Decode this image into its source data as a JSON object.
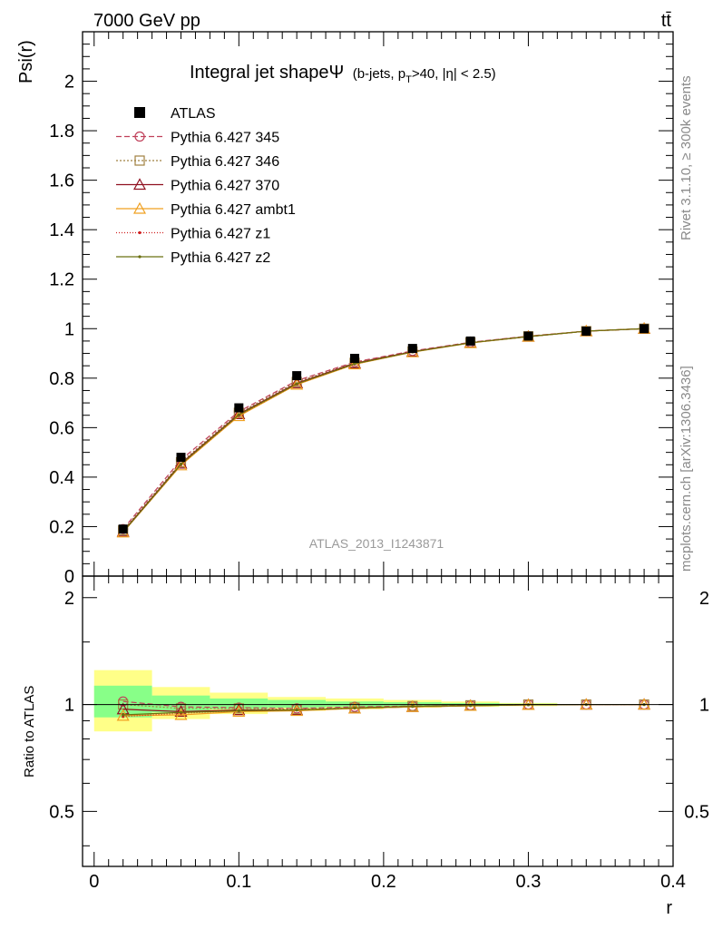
{
  "header": {
    "energy_label": "7000 GeV pp",
    "process_label": "tt̄"
  },
  "side_labels": {
    "rivet": "Rivet 3.1.10, ≥ 300k events",
    "source": "mcplots.cern.ch [arXiv:1306.3436]"
  },
  "chart_data": {
    "type": "line",
    "title": "Integral jet shapeΨ",
    "subtitle_parts": {
      "open": "(b-jets, p",
      "sub": "T",
      "rest": ">40, |η| < 2.5)"
    },
    "watermark": "ATLAS_2013_I1243871",
    "xlabel": "r",
    "ylabel": "Psi(r)",
    "ratio_ylabel": "Ratio to ATLAS",
    "xlim": [
      -0.008,
      0.4
    ],
    "ylim": [
      0,
      2.2
    ],
    "ratio_ylim": [
      0.35,
      2.3
    ],
    "x_ticks": [
      0,
      0.1,
      0.2,
      0.3,
      0.4
    ],
    "x_tick_labels": [
      "0",
      "0.1",
      "0.2",
      "0.3",
      "0.4"
    ],
    "y_ticks": [
      0,
      0.2,
      0.4,
      0.6,
      0.8,
      1,
      1.2,
      1.4,
      1.6,
      1.8,
      2
    ],
    "y_tick_labels": [
      "0",
      "0.2",
      "0.4",
      "0.6",
      "0.8",
      "1",
      "1.2",
      "1.4",
      "1.6",
      "1.8",
      "2"
    ],
    "ratio_ticks": [
      0.5,
      1,
      2
    ],
    "ratio_tick_labels": [
      "0.5",
      "1",
      "2"
    ],
    "legend_position": "top-left",
    "x": [
      0.02,
      0.06,
      0.1,
      0.14,
      0.18,
      0.22,
      0.26,
      0.3,
      0.34,
      0.38
    ],
    "bin_edges": [
      0,
      0.04,
      0.08,
      0.12,
      0.16,
      0.2,
      0.24,
      0.28,
      0.32,
      0.36,
      0.4
    ],
    "data": {
      "name": "ATLAS",
      "values": [
        0.19,
        0.48,
        0.68,
        0.81,
        0.88,
        0.92,
        0.95,
        0.97,
        0.99,
        1.0
      ]
    },
    "ratio_bands": {
      "outer": [
        [
          0.84,
          1.25
        ],
        [
          0.91,
          1.12
        ],
        [
          0.94,
          1.08
        ],
        [
          0.96,
          1.05
        ],
        [
          0.97,
          1.04
        ],
        [
          0.98,
          1.03
        ],
        [
          0.985,
          1.02
        ],
        [
          0.99,
          1.01
        ],
        [
          1.0,
          1.0
        ],
        [
          1.0,
          1.0
        ]
      ],
      "inner": [
        [
          0.92,
          1.13
        ],
        [
          0.95,
          1.06
        ],
        [
          0.97,
          1.04
        ],
        [
          0.98,
          1.03
        ],
        [
          0.985,
          1.02
        ],
        [
          0.99,
          1.015
        ],
        [
          0.99,
          1.01
        ],
        [
          0.995,
          1.005
        ],
        [
          1.0,
          1.0
        ],
        [
          1.0,
          1.0
        ]
      ]
    },
    "series": [
      {
        "name": "Pythia 6.427 345",
        "color": "#c0405a",
        "dash": "6,3",
        "marker": "circle",
        "values": [
          0.19,
          0.47,
          0.665,
          0.79,
          0.865,
          0.91,
          0.945,
          0.97,
          0.99,
          1.0
        ],
        "ratio": [
          1.02,
          0.985,
          0.98,
          0.975,
          0.985,
          0.99,
          0.995,
          1.0,
          1.0,
          1.0
        ]
      },
      {
        "name": "Pythia 6.427 346",
        "color": "#a08040",
        "dash": "2,2",
        "marker": "square",
        "values": [
          0.185,
          0.46,
          0.66,
          0.785,
          0.862,
          0.908,
          0.944,
          0.969,
          0.99,
          1.0
        ],
        "ratio": [
          1.0,
          0.975,
          0.975,
          0.97,
          0.98,
          0.99,
          0.995,
          1.0,
          1.0,
          1.0
        ]
      },
      {
        "name": "Pythia 6.427 370",
        "color": "#901020",
        "dash": "",
        "marker": "triangle",
        "values": [
          0.18,
          0.455,
          0.655,
          0.78,
          0.86,
          0.907,
          0.943,
          0.968,
          0.99,
          1.0
        ],
        "ratio": [
          0.97,
          0.955,
          0.965,
          0.965,
          0.975,
          0.985,
          0.992,
          0.998,
          1.0,
          1.0
        ]
      },
      {
        "name": "Pythia 6.427 ambt1",
        "color": "#f0a020",
        "dash": "",
        "marker": "triangle",
        "values": [
          0.177,
          0.448,
          0.647,
          0.774,
          0.856,
          0.905,
          0.942,
          0.968,
          0.99,
          1.0
        ],
        "ratio": [
          0.93,
          0.935,
          0.955,
          0.96,
          0.975,
          0.985,
          0.992,
          0.998,
          1.0,
          1.0
        ]
      },
      {
        "name": "Pythia 6.427 z1",
        "color": "#d02020",
        "dash": "1,2",
        "marker": "dot",
        "values": [
          0.177,
          0.45,
          0.65,
          0.776,
          0.857,
          0.906,
          0.943,
          0.968,
          0.99,
          1.0
        ],
        "ratio": [
          0.925,
          0.945,
          0.96,
          0.965,
          0.977,
          0.988,
          0.993,
          0.998,
          1.0,
          1.0
        ]
      },
      {
        "name": "Pythia 6.427 z2",
        "color": "#6b7010",
        "dash": "",
        "marker": "dot",
        "values": [
          0.178,
          0.452,
          0.652,
          0.777,
          0.858,
          0.906,
          0.943,
          0.968,
          0.99,
          1.0
        ],
        "ratio": [
          0.935,
          0.95,
          0.96,
          0.965,
          0.978,
          0.988,
          0.993,
          0.998,
          1.0,
          1.0
        ]
      }
    ]
  }
}
